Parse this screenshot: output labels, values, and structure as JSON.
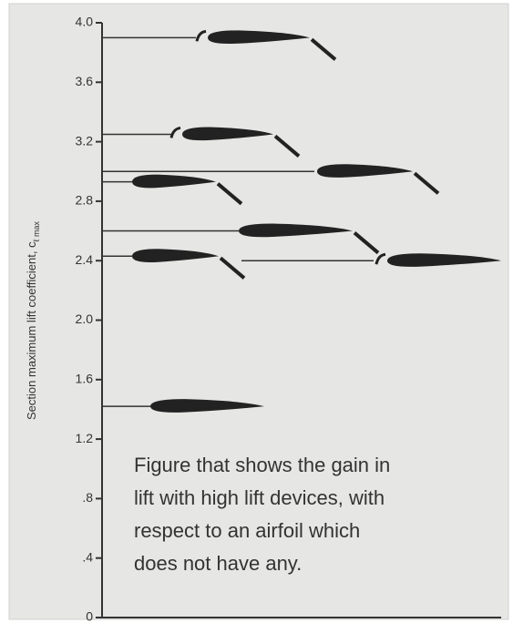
{
  "chart_data": {
    "type": "levels",
    "ylabel": "Section maximum lift coefficient, c",
    "ylabel_subscript": "ℓ max",
    "values": [
      3.9,
      3.25,
      3.0,
      2.93,
      2.6,
      2.43,
      2.4,
      1.42
    ],
    "color": "#222222",
    "ylim": [
      0,
      4
    ],
    "yticks": [
      0,
      {
        "value": 0.4,
        "label": ".4"
      },
      {
        "value": 0.8,
        "label": ".8"
      },
      1.2,
      1.6,
      {
        "value": 2,
        "label": "2.0"
      },
      2.4,
      2.8,
      3.2,
      3.6,
      {
        "value": 4,
        "label": "4.0"
      }
    ],
    "annotation": [
      "Figure that shows the gain in",
      "lift with high lift devices, with",
      "respect to an airfoil which",
      "does not have any."
    ]
  }
}
